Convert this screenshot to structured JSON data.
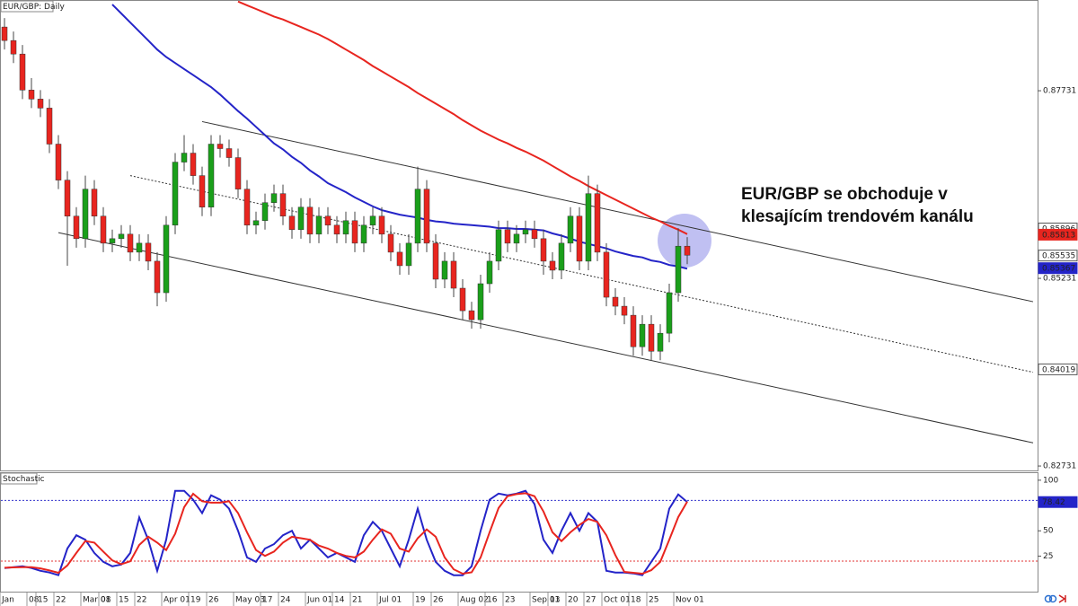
{
  "chart_data": [
    {
      "type": "candlestick",
      "title": "EUR/GBP: Daily",
      "annotation": [
        "EUR/GBP se obchoduje v",
        "klesajícím trendovém kanálu"
      ],
      "categories": [
        "Jan",
        null,
        null,
        "08",
        "15",
        null,
        "22",
        null,
        null,
        "Mar 01",
        null,
        "08",
        null,
        "15",
        null,
        "22",
        null,
        null,
        "Apr 01",
        null,
        null,
        "19",
        null,
        "26",
        null,
        null,
        "May 03",
        null,
        null,
        "17",
        null,
        "24",
        null,
        null,
        "Jun 01",
        null,
        null,
        "14",
        null,
        "21",
        null,
        null,
        "Jul 01",
        null,
        null,
        null,
        "19",
        null,
        "26",
        null,
        null,
        "Aug 02",
        null,
        null,
        "16",
        null,
        "23",
        null,
        null,
        "Sep 01",
        null,
        "13",
        null,
        "20",
        null,
        "27",
        null,
        "Oct 01",
        null,
        null,
        "18",
        null,
        "25",
        null,
        null,
        "Nov 01",
        null
      ],
      "open": [
        0.8858,
        0.884,
        0.8822,
        0.8774,
        0.8762,
        0.875,
        0.8702,
        0.8654,
        0.8606,
        0.8576,
        0.8642,
        0.8606,
        0.857,
        0.8576,
        0.8582,
        0.8558,
        0.857,
        0.8546,
        0.8504,
        0.8594,
        0.8678,
        0.869,
        0.866,
        0.8618,
        0.8702,
        0.8696,
        0.8684,
        0.8642,
        0.8594,
        0.86,
        0.8624,
        0.8636,
        0.8606,
        0.8588,
        0.8618,
        0.8582,
        0.8606,
        0.8594,
        0.8582,
        0.86,
        0.857,
        0.8594,
        0.8606,
        0.8582,
        0.8558,
        0.854,
        0.857,
        0.8642,
        0.857,
        0.8522,
        0.8546,
        0.851,
        0.848,
        0.8468,
        0.8516,
        0.8546,
        0.8588,
        0.857,
        0.8582,
        0.8588,
        0.8576,
        0.8546,
        0.8534,
        0.857,
        0.8606,
        0.8546,
        0.8636,
        0.8558,
        0.8498,
        0.8486,
        0.8474,
        0.8432,
        0.8462,
        0.8426,
        0.845,
        0.8504,
        0.8566
      ],
      "high": [
        0.887,
        0.8852,
        0.8834,
        0.879,
        0.8774,
        0.8762,
        0.8714,
        0.8666,
        0.8618,
        0.866,
        0.8654,
        0.8618,
        0.8588,
        0.8594,
        0.8594,
        0.8582,
        0.8582,
        0.8558,
        0.8606,
        0.869,
        0.8714,
        0.8702,
        0.8672,
        0.8714,
        0.8714,
        0.8708,
        0.8696,
        0.8654,
        0.8612,
        0.8636,
        0.8648,
        0.8648,
        0.8618,
        0.863,
        0.863,
        0.8618,
        0.8618,
        0.8606,
        0.8612,
        0.8612,
        0.8606,
        0.8618,
        0.8618,
        0.8594,
        0.857,
        0.8582,
        0.8672,
        0.8654,
        0.8582,
        0.8558,
        0.8558,
        0.8522,
        0.8492,
        0.8528,
        0.8558,
        0.86,
        0.86,
        0.8594,
        0.86,
        0.86,
        0.8588,
        0.8558,
        0.8582,
        0.8618,
        0.8618,
        0.866,
        0.8648,
        0.857,
        0.851,
        0.8498,
        0.8486,
        0.8474,
        0.8474,
        0.8462,
        0.8516,
        0.859,
        0.8578
      ],
      "low": [
        0.8828,
        0.881,
        0.8762,
        0.875,
        0.8738,
        0.869,
        0.8642,
        0.854,
        0.8564,
        0.8564,
        0.8594,
        0.8558,
        0.8558,
        0.8564,
        0.8546,
        0.8546,
        0.8534,
        0.8486,
        0.8492,
        0.8582,
        0.8666,
        0.8648,
        0.8606,
        0.8606,
        0.8684,
        0.8672,
        0.863,
        0.8582,
        0.8582,
        0.8588,
        0.8612,
        0.8594,
        0.8576,
        0.8576,
        0.857,
        0.857,
        0.8582,
        0.857,
        0.857,
        0.8558,
        0.8558,
        0.8582,
        0.857,
        0.8546,
        0.8528,
        0.8528,
        0.8558,
        0.8558,
        0.851,
        0.851,
        0.8498,
        0.8468,
        0.8456,
        0.8456,
        0.8504,
        0.8534,
        0.8558,
        0.8558,
        0.857,
        0.8564,
        0.8528,
        0.8522,
        0.8522,
        0.8558,
        0.8534,
        0.8534,
        0.8546,
        0.8486,
        0.8474,
        0.8462,
        0.842,
        0.842,
        0.8414,
        0.8414,
        0.8438,
        0.8492,
        0.8542
      ],
      "close": [
        0.884,
        0.8822,
        0.8774,
        0.8762,
        0.875,
        0.8702,
        0.8654,
        0.8606,
        0.8576,
        0.8642,
        0.8606,
        0.857,
        0.8576,
        0.8582,
        0.8558,
        0.857,
        0.8546,
        0.8504,
        0.8594,
        0.8678,
        0.869,
        0.866,
        0.8618,
        0.8702,
        0.8696,
        0.8684,
        0.8642,
        0.8594,
        0.86,
        0.8624,
        0.8636,
        0.8606,
        0.8588,
        0.8618,
        0.8582,
        0.8606,
        0.8594,
        0.8582,
        0.86,
        0.857,
        0.8594,
        0.8606,
        0.8582,
        0.8558,
        0.854,
        0.857,
        0.8642,
        0.857,
        0.8522,
        0.8546,
        0.851,
        0.848,
        0.8468,
        0.8516,
        0.8546,
        0.8588,
        0.857,
        0.8582,
        0.8588,
        0.8576,
        0.8546,
        0.8534,
        0.857,
        0.8606,
        0.8546,
        0.8636,
        0.8558,
        0.8498,
        0.8486,
        0.8474,
        0.8432,
        0.8462,
        0.8426,
        0.845,
        0.8504,
        0.8566,
        0.8554
      ],
      "up_color": "#1a9f1a",
      "down_color": "#e8251f",
      "series": [
        {
          "color": "#2424c8",
          "values": [
            null,
            null,
            null,
            null,
            null,
            null,
            null,
            null,
            null,
            null,
            null,
            null,
            0.8888,
            0.8876,
            0.8864,
            0.8852,
            0.884,
            0.8828,
            0.8818,
            0.881,
            0.8802,
            0.8794,
            0.8786,
            0.8778,
            0.8768,
            0.8757,
            0.8746,
            0.8736,
            0.8725,
            0.8714,
            0.8703,
            0.8695,
            0.8685,
            0.8677,
            0.8667,
            0.8659,
            0.865,
            0.8644,
            0.8638,
            0.8631,
            0.8625,
            0.8619,
            0.8614,
            0.8611,
            0.8608,
            0.8606,
            0.8604,
            0.8601,
            0.8599,
            0.8598,
            0.8596,
            0.8595,
            0.8594,
            0.8593,
            0.8592,
            0.859,
            0.859,
            0.8589,
            0.8589,
            0.8588,
            0.8587,
            0.8583,
            0.858,
            0.8576,
            0.8572,
            0.8569,
            0.8566,
            0.8563,
            0.8559,
            0.8556,
            0.8553,
            0.8551,
            0.8547,
            0.8545,
            0.8541,
            0.8539,
            0.8536
          ]
        },
        {
          "color": "#e8251f",
          "values": [
            null,
            null,
            null,
            null,
            null,
            null,
            null,
            null,
            null,
            null,
            null,
            null,
            null,
            null,
            null,
            null,
            null,
            null,
            null,
            null,
            null,
            null,
            null,
            null,
            null,
            null,
            0.8892,
            0.8887,
            0.8882,
            0.8877,
            0.8872,
            0.8868,
            0.8863,
            0.8858,
            0.8853,
            0.8848,
            0.8842,
            0.8835,
            0.8828,
            0.8821,
            0.8814,
            0.8806,
            0.8799,
            0.8792,
            0.8785,
            0.8778,
            0.877,
            0.8763,
            0.8756,
            0.8749,
            0.8742,
            0.8734,
            0.8727,
            0.872,
            0.8714,
            0.8708,
            0.8703,
            0.8697,
            0.8692,
            0.8686,
            0.868,
            0.8673,
            0.8666,
            0.8659,
            0.8653,
            0.8646,
            0.864,
            0.8634,
            0.8628,
            0.8622,
            0.8616,
            0.861,
            0.8604,
            0.8599,
            0.8593,
            0.8588,
            0.8582
          ]
        }
      ],
      "channels": [
        {
          "x": [
            22,
            114.5
          ],
          "values": [
            0.8732,
            0.8492
          ],
          "dashed": false
        },
        {
          "x": [
            14,
            114.5
          ],
          "values": [
            0.866,
            0.8398
          ],
          "dashed": true
        },
        {
          "x": [
            6,
            114.5
          ],
          "values": [
            0.8584,
            0.8304
          ],
          "dashed": false
        }
      ],
      "price_tags": [
        {
          "value": 0.85896,
          "color": "#ffffff"
        },
        {
          "value": 0.85813,
          "color": "#e8251f"
        },
        {
          "value": 0.85535,
          "color": "#ffffff"
        },
        {
          "value": 0.85367,
          "color": "#2424c8"
        },
        {
          "value": 0.84019,
          "color": "#ffffff"
        }
      ],
      "ylim": [
        0.8266,
        0.8894
      ],
      "yticks": [
        0.87731,
        0.85231,
        0.82731
      ]
    },
    {
      "type": "line",
      "title": "Stochastic",
      "series": [
        {
          "color": "#2424c8",
          "values": [
            13.2,
            14.0,
            14.9,
            13.2,
            10.5,
            8.8,
            6.1,
            32.5,
            45.6,
            41.2,
            28.1,
            19.3,
            14.9,
            16.7,
            28.1,
            63.2,
            41.2,
            10.5,
            41.2,
            89.5,
            89.5,
            80.7,
            67.5,
            85.1,
            80.7,
            71.9,
            50.0,
            23.7,
            19.3,
            32.5,
            36.8,
            45.6,
            50.0,
            32.5,
            41.2,
            32.5,
            23.7,
            28.1,
            23.7,
            19.3,
            45.6,
            58.8,
            50.0,
            32.5,
            14.9,
            41.2,
            71.9,
            41.2,
            19.3,
            10.5,
            6.1,
            6.1,
            14.9,
            50.0,
            80.7,
            86.8,
            85.1,
            86.8,
            89.5,
            76.3,
            41.2,
            28.1,
            50.0,
            67.5,
            50.0,
            67.5,
            58.8,
            10.5,
            8.8,
            8.8,
            7.9,
            6.1,
            19.3,
            32.5,
            71.9,
            86.0,
            78.4
          ]
        },
        {
          "color": "#e8251f",
          "values": [
            13.5,
            13.8,
            14.0,
            14.0,
            12.9,
            10.8,
            8.5,
            15.8,
            28.1,
            39.8,
            38.3,
            29.5,
            20.8,
            17.0,
            19.9,
            36.0,
            44.2,
            38.3,
            31.0,
            47.1,
            73.4,
            86.6,
            79.2,
            77.8,
            77.8,
            79.2,
            67.5,
            48.5,
            31.0,
            25.2,
            29.5,
            38.3,
            44.1,
            42.7,
            41.2,
            35.4,
            32.5,
            28.1,
            25.2,
            23.7,
            29.5,
            41.2,
            51.5,
            47.1,
            32.5,
            29.5,
            42.7,
            51.4,
            44.1,
            23.7,
            12.0,
            7.6,
            9.0,
            23.7,
            48.5,
            72.5,
            84.2,
            86.2,
            87.1,
            84.2,
            69.0,
            48.5,
            39.8,
            48.5,
            55.8,
            61.7,
            58.8,
            45.6,
            26.0,
            9.4,
            8.5,
            7.6,
            11.1,
            19.3,
            41.2,
            63.5,
            78.8
          ]
        }
      ],
      "levels": [
        {
          "value": 80,
          "color": "#3333cc"
        },
        {
          "value": 20,
          "color": "#e03030"
        }
      ],
      "price_tags": [
        {
          "value": 78.42,
          "color": "#2424c8"
        }
      ],
      "ylim": [
        -11,
        107
      ],
      "yticks": [
        100,
        50,
        25
      ]
    }
  ]
}
